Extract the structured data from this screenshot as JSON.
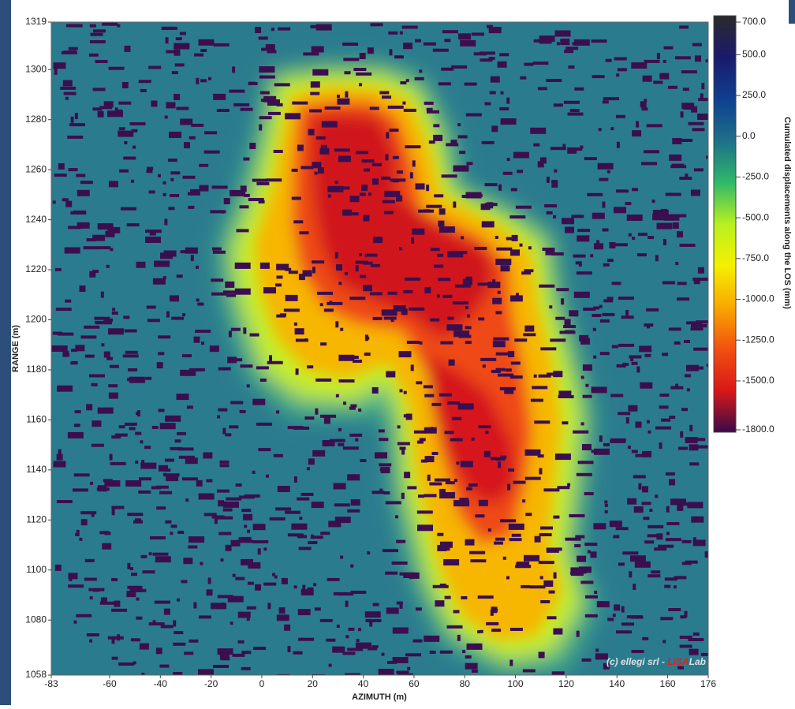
{
  "chart_data": {
    "type": "heatmap",
    "x_label": "AZIMUTH (m)",
    "y_label": "RANGE (m)",
    "xlim": [
      -83,
      176
    ],
    "xticks": [
      -83,
      -60,
      -40,
      -20,
      0,
      20,
      40,
      60,
      80,
      100,
      120,
      140,
      160,
      176
    ],
    "ylim": [
      1058,
      1319
    ],
    "yticks": [
      1058,
      1080,
      1100,
      1120,
      1140,
      1160,
      1180,
      1200,
      1220,
      1240,
      1260,
      1280,
      1300,
      1319
    ],
    "colorbar": {
      "label": "Cumulated displacements along the LOS (mm)",
      "lim": [
        -1800,
        700
      ],
      "ticks": [
        {
          "value": 700,
          "label": "700.0"
        },
        {
          "value": 500,
          "label": "500.0"
        },
        {
          "value": 250,
          "label": "250.0"
        },
        {
          "value": 0,
          "label": "0.0"
        },
        {
          "value": -250,
          "label": "-250.0"
        },
        {
          "value": -500,
          "label": "-500.0"
        },
        {
          "value": -750,
          "label": "-750.0"
        },
        {
          "value": -1000,
          "label": "-1000.0"
        },
        {
          "value": -1250,
          "label": "-1250.0"
        },
        {
          "value": -1500,
          "label": "-1500.0"
        },
        {
          "value": -1800,
          "label": "-1800.0"
        }
      ],
      "colors": [
        "#2a2a2a",
        "#1a1a6e",
        "#0f3f8f",
        "#1e6f8a",
        "#2fb86a",
        "#b8f020",
        "#f5f000",
        "#f8a800",
        "#f25010",
        "#d81818",
        "#3a0a4a"
      ]
    },
    "watermark": {
      "prefix": "(c) ellegi srl - ",
      "highlight": "LiSA",
      "suffix": "Lab"
    }
  }
}
